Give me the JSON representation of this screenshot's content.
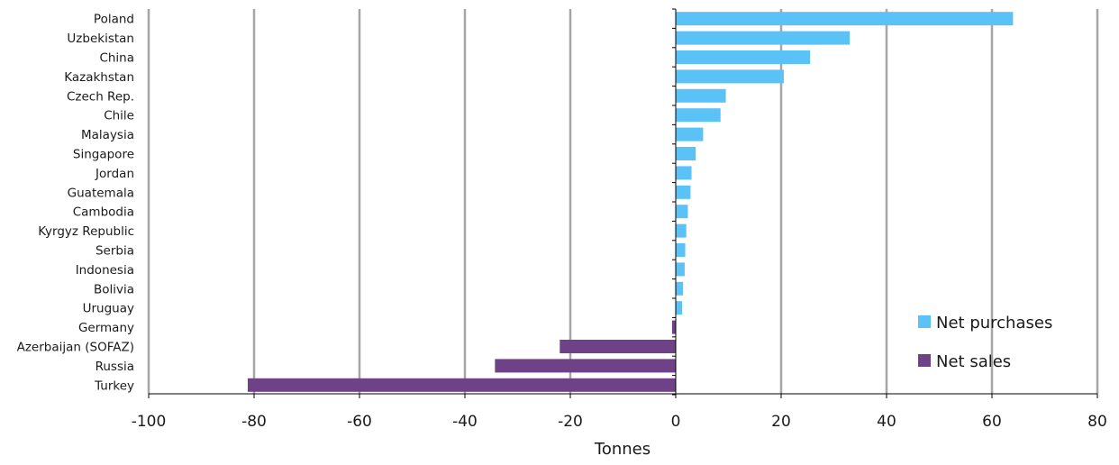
{
  "chart_data": {
    "type": "bar",
    "orientation": "horizontal",
    "title": "",
    "xlabel": "Tonnes",
    "ylabel": "",
    "xlim": [
      -100,
      80
    ],
    "xticks": [
      -100,
      -80,
      -60,
      -40,
      -20,
      0,
      20,
      40,
      60,
      80
    ],
    "grid": "vertical",
    "legend_position": "bottom-right",
    "series_colors": {
      "purchases": "#5bc2f7",
      "sales": "#6f4287"
    },
    "series": [
      {
        "name": "Net purchases",
        "key": "purchases"
      },
      {
        "name": "Net sales",
        "key": "sales"
      }
    ],
    "categories": [
      "Poland",
      "Uzbekistan",
      "China",
      "Kazakhstan",
      "Czech Rep.",
      "Chile",
      "Malaysia",
      "Singapore",
      "Jordan",
      "Guatemala",
      "Cambodia",
      "Kyrgyz Republic",
      "Serbia",
      "Indonesia",
      "Bolivia",
      "Uruguay",
      "Germany",
      "Azerbaijan (SOFAZ)",
      "Russia",
      "Turkey"
    ],
    "values": [
      64,
      33,
      25.5,
      20.5,
      9.5,
      8.5,
      5.2,
      3.8,
      3.0,
      2.8,
      2.3,
      2.0,
      1.8,
      1.7,
      1.4,
      1.2,
      -0.7,
      -22,
      -34.3,
      -81.2
    ]
  }
}
